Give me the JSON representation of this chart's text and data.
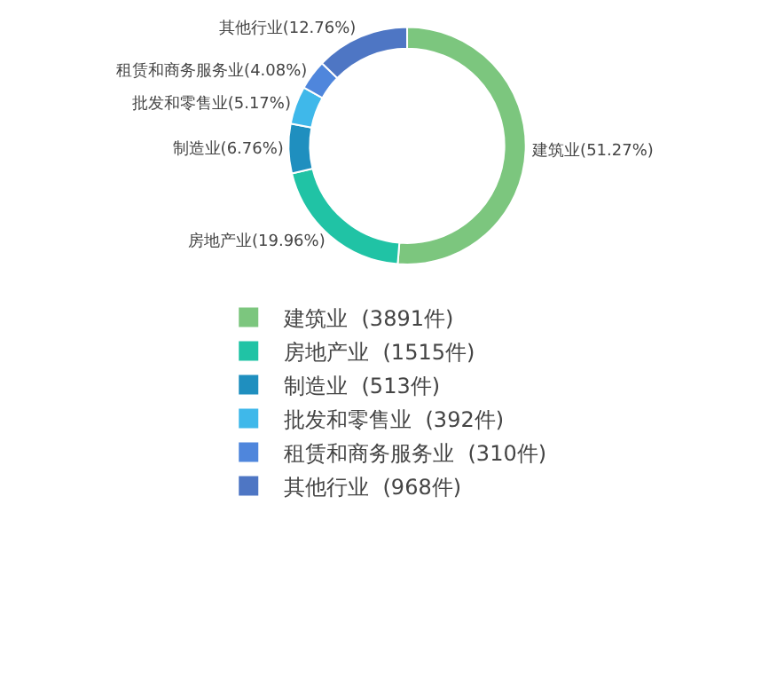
{
  "chart_data": {
    "type": "donut",
    "categories": [
      "建筑业  (3891件)",
      "房地产业  (1515件)",
      "制造业  (513件)",
      "批发和零售业  (392件)",
      "租赁和商务服务业  (310件)",
      "其他行业  (968件)"
    ],
    "values": [
      3891,
      1515,
      513,
      392,
      310,
      968
    ],
    "colors": [
      "#7cc67e",
      "#20c3a5",
      "#1f8fbf",
      "#3fb8ea",
      "#4f86dc",
      "#4e76c4"
    ],
    "value_labels": [
      "建筑业(51.27%)",
      "房地产业(19.96%)",
      "制造业(6.76%)",
      "批发和零售业(5.17%)",
      "租赁和商务服务业(4.08%)",
      "其他行业(12.76%)"
    ],
    "legend": "bottom"
  }
}
